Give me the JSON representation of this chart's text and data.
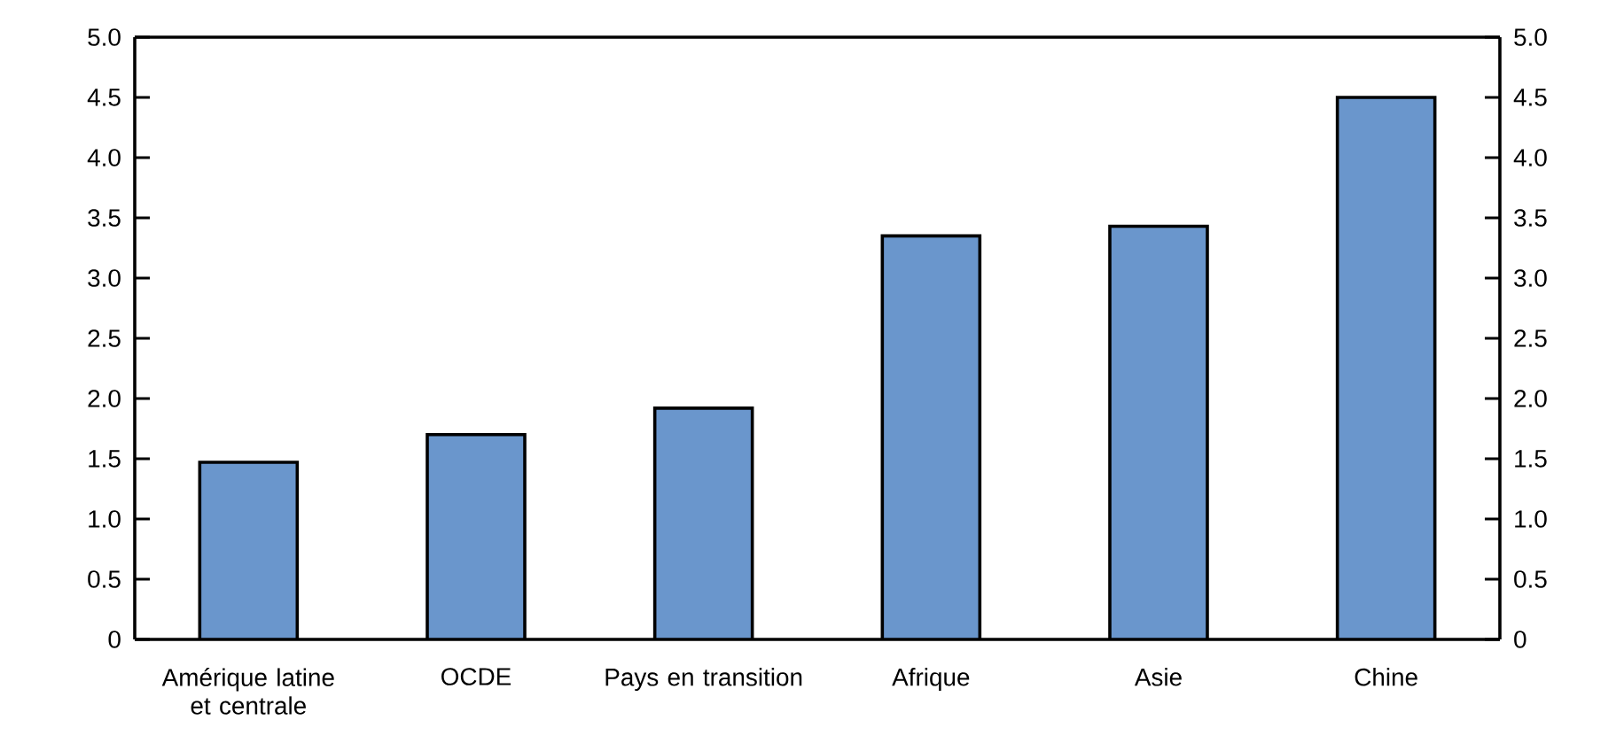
{
  "chart_data": {
    "type": "bar",
    "categories": [
      "Amérique latine et centrale",
      "OCDE",
      "Pays en transition",
      "Afrique",
      "Asie",
      "Chine"
    ],
    "values": [
      1.47,
      1.7,
      1.92,
      3.35,
      3.43,
      4.5
    ],
    "color": "#6a96cc",
    "ylim": [
      0,
      5
    ],
    "yticks": [
      0,
      0.5,
      {
        "value": 1,
        "label": "1.0"
      },
      1.5,
      {
        "value": 2,
        "label": "2.0"
      },
      2.5,
      {
        "value": 3,
        "label": "3.0"
      },
      3.5,
      {
        "value": 4,
        "label": "4.0"
      },
      4.5,
      {
        "value": 5,
        "label": "5.0"
      }
    ],
    "y2lim": [
      0,
      5
    ],
    "y2ticks": [
      0,
      0.5,
      {
        "value": 1,
        "label": "1.0"
      },
      1.5,
      {
        "value": 2,
        "label": "2.0"
      },
      2.5,
      {
        "value": 3,
        "label": "3.0"
      },
      3.5,
      {
        "value": 4,
        "label": "4.0"
      },
      4.5,
      {
        "value": 5,
        "label": "5.0"
      }
    ],
    "grid": false
  }
}
